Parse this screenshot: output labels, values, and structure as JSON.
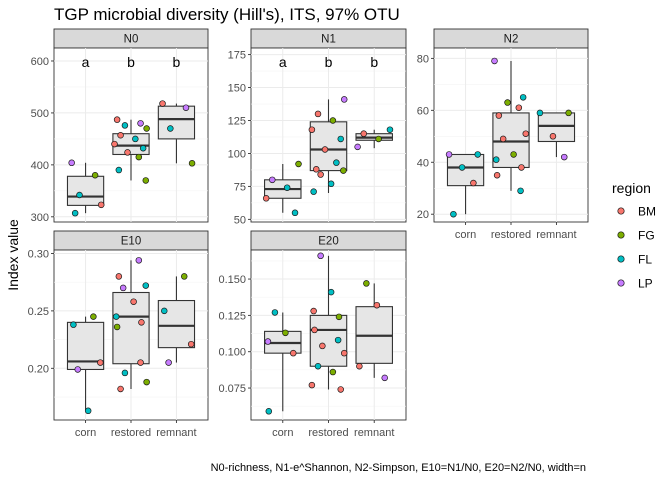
{
  "chart_data": {
    "type": "boxplot",
    "title": "TGP microbial diversity (Hill's), ITS, 97% OTU",
    "ylabel": "Index value",
    "caption": "N0-richness, N1-e^Shannon, N2-Simpson, E10=N1/N0, E20=N2/N0, width=n",
    "categories": [
      "corn",
      "restored",
      "remnant"
    ],
    "legend": {
      "title": "region",
      "placement": "right",
      "items": [
        {
          "name": "BM",
          "color": "#F8766D"
        },
        {
          "name": "FG",
          "color": "#7CAE00"
        },
        {
          "name": "FL",
          "color": "#00BFC4"
        },
        {
          "name": "LP",
          "color": "#C77CFF"
        }
      ]
    },
    "panels": [
      {
        "name": "N0",
        "ylim": [
          290,
          625
        ],
        "yticks": [
          300,
          400,
          500,
          600
        ],
        "letters": [
          "a",
          "b",
          "b"
        ],
        "boxes": [
          {
            "category": "corn",
            "min": 307,
            "q1": 322,
            "median": 339,
            "q3": 378,
            "max": 404
          },
          {
            "category": "restored",
            "min": 370,
            "q1": 420,
            "median": 437,
            "q3": 460,
            "max": 487
          },
          {
            "category": "remnant",
            "min": 403,
            "q1": 450,
            "median": 488,
            "q3": 513,
            "max": 518
          }
        ],
        "points": [
          {
            "category": "corn",
            "y": 404,
            "region": "LP"
          },
          {
            "category": "corn",
            "y": 380,
            "region": "FG"
          },
          {
            "category": "corn",
            "y": 342,
            "region": "FL"
          },
          {
            "category": "corn",
            "y": 323,
            "region": "BM"
          },
          {
            "category": "corn",
            "y": 307,
            "region": "FL"
          },
          {
            "category": "restored",
            "y": 487,
            "region": "BM"
          },
          {
            "category": "restored",
            "y": 480,
            "region": "LP"
          },
          {
            "category": "restored",
            "y": 476,
            "region": "FL"
          },
          {
            "category": "restored",
            "y": 470,
            "region": "FG"
          },
          {
            "category": "restored",
            "y": 457,
            "region": "BM"
          },
          {
            "category": "restored",
            "y": 450,
            "region": "FL"
          },
          {
            "category": "restored",
            "y": 440,
            "region": "BM"
          },
          {
            "category": "restored",
            "y": 432,
            "region": "FL"
          },
          {
            "category": "restored",
            "y": 424,
            "region": "BM"
          },
          {
            "category": "restored",
            "y": 415,
            "region": "FG"
          },
          {
            "category": "restored",
            "y": 390,
            "region": "FL"
          },
          {
            "category": "restored",
            "y": 370,
            "region": "FG"
          },
          {
            "category": "remnant",
            "y": 518,
            "region": "BM"
          },
          {
            "category": "remnant",
            "y": 510,
            "region": "LP"
          },
          {
            "category": "remnant",
            "y": 470,
            "region": "FL"
          },
          {
            "category": "remnant",
            "y": 403,
            "region": "FG"
          }
        ]
      },
      {
        "name": "N1",
        "ylim": [
          48,
          180
        ],
        "yticks": [
          50,
          75,
          100,
          125,
          150,
          175
        ],
        "letters": [
          "a",
          "b",
          "b"
        ],
        "boxes": [
          {
            "category": "corn",
            "min": 55,
            "q1": 66,
            "median": 73,
            "q3": 80,
            "max": 92
          },
          {
            "category": "restored",
            "min": 70,
            "q1": 87,
            "median": 103,
            "q3": 124,
            "max": 141
          },
          {
            "category": "remnant",
            "min": 104,
            "q1": 110,
            "median": 112,
            "q3": 115,
            "max": 118
          }
        ],
        "points": [
          {
            "category": "corn",
            "y": 92,
            "region": "FG"
          },
          {
            "category": "corn",
            "y": 80,
            "region": "LP"
          },
          {
            "category": "corn",
            "y": 74,
            "region": "FL"
          },
          {
            "category": "corn",
            "y": 66,
            "region": "BM"
          },
          {
            "category": "corn",
            "y": 55,
            "region": "FL"
          },
          {
            "category": "restored",
            "y": 141,
            "region": "LP"
          },
          {
            "category": "restored",
            "y": 130,
            "region": "BM"
          },
          {
            "category": "restored",
            "y": 125,
            "region": "FG"
          },
          {
            "category": "restored",
            "y": 118,
            "region": "BM"
          },
          {
            "category": "restored",
            "y": 111,
            "region": "FL"
          },
          {
            "category": "restored",
            "y": 103,
            "region": "BM"
          },
          {
            "category": "restored",
            "y": 93,
            "region": "FL"
          },
          {
            "category": "restored",
            "y": 88,
            "region": "BM"
          },
          {
            "category": "restored",
            "y": 87,
            "region": "FG"
          },
          {
            "category": "restored",
            "y": 84,
            "region": "BM"
          },
          {
            "category": "restored",
            "y": 77,
            "region": "FL"
          },
          {
            "category": "restored",
            "y": 71,
            "region": "FL"
          },
          {
            "category": "remnant",
            "y": 118,
            "region": "FL"
          },
          {
            "category": "remnant",
            "y": 115,
            "region": "BM"
          },
          {
            "category": "remnant",
            "y": 111,
            "region": "FG"
          },
          {
            "category": "remnant",
            "y": 105,
            "region": "LP"
          }
        ]
      },
      {
        "name": "N2",
        "ylim": [
          17,
          84
        ],
        "yticks": [
          20,
          40,
          60,
          80
        ],
        "letters": [
          "",
          "",
          ""
        ],
        "boxes": [
          {
            "category": "corn",
            "min": 20,
            "q1": 31,
            "median": 38,
            "q3": 43,
            "max": 43
          },
          {
            "category": "restored",
            "min": 29,
            "q1": 38,
            "median": 48,
            "q3": 59,
            "max": 79
          },
          {
            "category": "remnant",
            "min": 42,
            "q1": 48,
            "median": 54,
            "q3": 59,
            "max": 59
          }
        ],
        "points": [
          {
            "category": "corn",
            "y": 43,
            "region": "LP"
          },
          {
            "category": "corn",
            "y": 43,
            "region": "FL"
          },
          {
            "category": "corn",
            "y": 38,
            "region": "FL"
          },
          {
            "category": "corn",
            "y": 32,
            "region": "BM"
          },
          {
            "category": "corn",
            "y": 20,
            "region": "FL"
          },
          {
            "category": "restored",
            "y": 79,
            "region": "LP"
          },
          {
            "category": "restored",
            "y": 65,
            "region": "FL"
          },
          {
            "category": "restored",
            "y": 63,
            "region": "FG"
          },
          {
            "category": "restored",
            "y": 61,
            "region": "BM"
          },
          {
            "category": "restored",
            "y": 58,
            "region": "BM"
          },
          {
            "category": "restored",
            "y": 51,
            "region": "BM"
          },
          {
            "category": "restored",
            "y": 49,
            "region": "BM"
          },
          {
            "category": "restored",
            "y": 43,
            "region": "FG"
          },
          {
            "category": "restored",
            "y": 41,
            "region": "FL"
          },
          {
            "category": "restored",
            "y": 38,
            "region": "BM"
          },
          {
            "category": "restored",
            "y": 35,
            "region": "BM"
          },
          {
            "category": "restored",
            "y": 29,
            "region": "FL"
          },
          {
            "category": "remnant",
            "y": 59,
            "region": "FL"
          },
          {
            "category": "remnant",
            "y": 59,
            "region": "FG"
          },
          {
            "category": "remnant",
            "y": 50,
            "region": "BM"
          },
          {
            "category": "remnant",
            "y": 42,
            "region": "LP"
          }
        ]
      },
      {
        "name": "E10",
        "ylim": [
          0.155,
          0.303
        ],
        "yticks": [
          0.2,
          0.25,
          0.3
        ],
        "ytick_labels": [
          "0.20",
          "0.25",
          "0.30"
        ],
        "letters": [
          "",
          "",
          ""
        ],
        "boxes": [
          {
            "category": "corn",
            "min": 0.163,
            "q1": 0.199,
            "median": 0.206,
            "q3": 0.24,
            "max": 0.245
          },
          {
            "category": "restored",
            "min": 0.182,
            "q1": 0.204,
            "median": 0.245,
            "q3": 0.266,
            "max": 0.294
          },
          {
            "category": "remnant",
            "min": 0.205,
            "q1": 0.218,
            "median": 0.237,
            "q3": 0.259,
            "max": 0.28
          }
        ],
        "points": [
          {
            "category": "corn",
            "y": 0.245,
            "region": "FG"
          },
          {
            "category": "corn",
            "y": 0.238,
            "region": "FL"
          },
          {
            "category": "corn",
            "y": 0.205,
            "region": "BM"
          },
          {
            "category": "corn",
            "y": 0.199,
            "region": "LP"
          },
          {
            "category": "corn",
            "y": 0.163,
            "region": "FL"
          },
          {
            "category": "restored",
            "y": 0.294,
            "region": "LP"
          },
          {
            "category": "restored",
            "y": 0.28,
            "region": "BM"
          },
          {
            "category": "restored",
            "y": 0.272,
            "region": "FL"
          },
          {
            "category": "restored",
            "y": 0.27,
            "region": "LP"
          },
          {
            "category": "restored",
            "y": 0.258,
            "region": "BM"
          },
          {
            "category": "restored",
            "y": 0.245,
            "region": "FL"
          },
          {
            "category": "restored",
            "y": 0.24,
            "region": "BM"
          },
          {
            "category": "restored",
            "y": 0.236,
            "region": "FG"
          },
          {
            "category": "restored",
            "y": 0.205,
            "region": "BM"
          },
          {
            "category": "restored",
            "y": 0.196,
            "region": "FL"
          },
          {
            "category": "restored",
            "y": 0.188,
            "region": "FG"
          },
          {
            "category": "restored",
            "y": 0.182,
            "region": "BM"
          },
          {
            "category": "remnant",
            "y": 0.28,
            "region": "FG"
          },
          {
            "category": "remnant",
            "y": 0.25,
            "region": "FL"
          },
          {
            "category": "remnant",
            "y": 0.221,
            "region": "BM"
          },
          {
            "category": "remnant",
            "y": 0.205,
            "region": "LP"
          }
        ]
      },
      {
        "name": "E20",
        "ylim": [
          0.053,
          0.17
        ],
        "yticks": [
          0.075,
          0.1,
          0.125,
          0.15
        ],
        "ytick_labels": [
          "0.075",
          "0.100",
          "0.125",
          "0.150"
        ],
        "letters": [
          "",
          "",
          ""
        ],
        "boxes": [
          {
            "category": "corn",
            "min": 0.059,
            "q1": 0.099,
            "median": 0.106,
            "q3": 0.114,
            "max": 0.127
          },
          {
            "category": "restored",
            "min": 0.074,
            "q1": 0.09,
            "median": 0.115,
            "q3": 0.125,
            "max": 0.166
          },
          {
            "category": "remnant",
            "min": 0.082,
            "q1": 0.092,
            "median": 0.111,
            "q3": 0.131,
            "max": 0.147
          }
        ],
        "points": [
          {
            "category": "corn",
            "y": 0.127,
            "region": "FL"
          },
          {
            "category": "corn",
            "y": 0.113,
            "region": "FG"
          },
          {
            "category": "corn",
            "y": 0.107,
            "region": "LP"
          },
          {
            "category": "corn",
            "y": 0.099,
            "region": "BM"
          },
          {
            "category": "corn",
            "y": 0.059,
            "region": "FL"
          },
          {
            "category": "restored",
            "y": 0.166,
            "region": "LP"
          },
          {
            "category": "restored",
            "y": 0.141,
            "region": "FL"
          },
          {
            "category": "restored",
            "y": 0.128,
            "region": "BM"
          },
          {
            "category": "restored",
            "y": 0.124,
            "region": "FG"
          },
          {
            "category": "restored",
            "y": 0.115,
            "region": "BM"
          },
          {
            "category": "restored",
            "y": 0.108,
            "region": "FL"
          },
          {
            "category": "restored",
            "y": 0.104,
            "region": "BM"
          },
          {
            "category": "restored",
            "y": 0.099,
            "region": "BM"
          },
          {
            "category": "restored",
            "y": 0.09,
            "region": "FL"
          },
          {
            "category": "restored",
            "y": 0.086,
            "region": "FG"
          },
          {
            "category": "restored",
            "y": 0.077,
            "region": "BM"
          },
          {
            "category": "restored",
            "y": 0.074,
            "region": "BM"
          },
          {
            "category": "remnant",
            "y": 0.147,
            "region": "FG"
          },
          {
            "category": "remnant",
            "y": 0.132,
            "region": "BM"
          },
          {
            "category": "remnant",
            "y": 0.09,
            "region": "BM"
          },
          {
            "category": "remnant",
            "y": 0.082,
            "region": "LP"
          }
        ]
      }
    ]
  }
}
